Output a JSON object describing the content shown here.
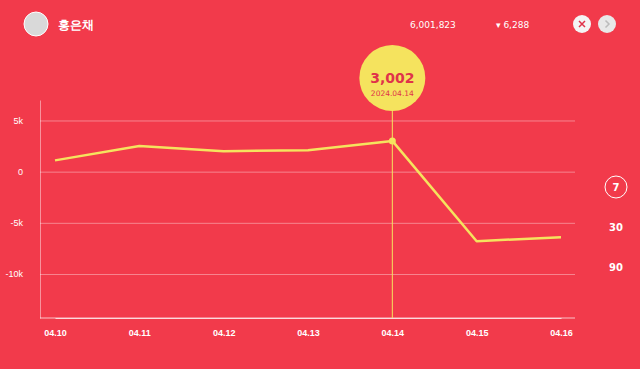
{
  "header": {
    "name": "홍은채",
    "total": "6,001,823",
    "change": "▾ 6,288"
  },
  "period_options": [
    "7",
    "30",
    "90"
  ],
  "selected_period": "7",
  "chart_data": {
    "type": "line",
    "categories": [
      "04.10",
      "04.11",
      "04.12",
      "04.13",
      "04.14",
      "04.15",
      "04.16"
    ],
    "values": [
      1100,
      2500,
      2000,
      2100,
      3002,
      -6800,
      -6400
    ],
    "color": "#f5e35e",
    "ylim": [
      -14300,
      7000
    ],
    "yticks": [
      {
        "value": 5000,
        "label": "5k"
      },
      0,
      {
        "value": -5000,
        "label": "-5k"
      },
      {
        "value": -10000,
        "label": "-10k"
      }
    ],
    "grid": true,
    "annotations": [
      {
        "x": "04.14",
        "y": 3002,
        "label": "3,002",
        "sublabel": "2024.04.14"
      }
    ]
  }
}
